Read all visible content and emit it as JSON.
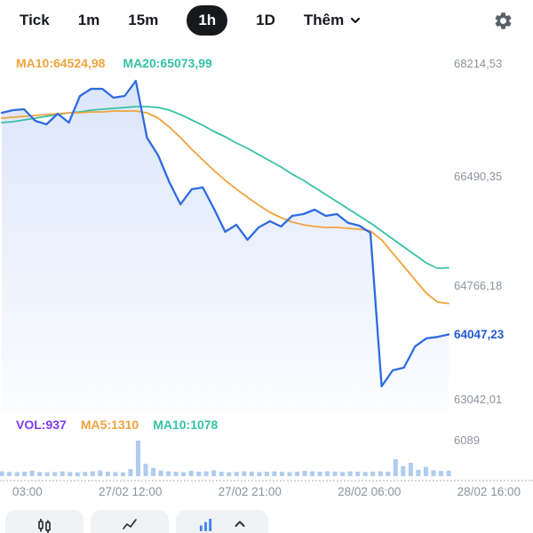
{
  "header": {
    "tabs": [
      {
        "label": "Tick"
      },
      {
        "label": "1m"
      },
      {
        "label": "15m"
      },
      {
        "label": "1h"
      },
      {
        "label": "1D"
      },
      {
        "label": "Thêm"
      }
    ],
    "active_tab": "1h"
  },
  "chart": {
    "ma_row": {
      "ma10": "MA10:64524,98",
      "ma20": "MA20:65073,99"
    },
    "y_axis": {
      "labels": [
        "68214,53",
        "66490,35",
        "64766,18",
        "63042,01"
      ],
      "current_price": "64047,23",
      "volume_axis_label": "6089"
    },
    "vol_row": {
      "vol": "VOL:937",
      "ma5": "MA5:1310",
      "ma10": "MA10:1078"
    },
    "x_axis": [
      "03:00",
      "27/02 12:00",
      "27/02 21:00",
      "28/02 06:00",
      "28/02 16:00"
    ]
  },
  "colors": {
    "price_line": "#2E6BE0",
    "price_area_top": "#2F6BE0",
    "ma10": "#F0A33F",
    "ma20": "#35C2A4",
    "vol_label": "#7C3AED",
    "volume_bar": "#AFCBEF",
    "current_price": "#2458D6",
    "axis_text": "#8D939C",
    "active_tab_bg": "#17191D"
  },
  "chart_data": {
    "type": "line",
    "title": "",
    "interval": "1h",
    "x_axis_labels": [
      "03:00",
      "27/02 12:00",
      "27/02 21:00",
      "28/02 06:00",
      "28/02 16:00"
    ],
    "y_axis_ticks": [
      68214.53,
      66490.35,
      64766.18,
      63042.01
    ],
    "current_price": 64047.23,
    "series": [
      {
        "name": "price",
        "color": "#2E6BE0",
        "values": [
          67462,
          67503,
          67517,
          67339,
          67284,
          67448,
          67312,
          67722,
          67831,
          67831,
          67695,
          67722,
          67955,
          67079,
          66805,
          66395,
          66053,
          66285,
          66313,
          65984,
          65629,
          65738,
          65506,
          65697,
          65793,
          65711,
          65875,
          65902,
          65971,
          65875,
          65902,
          65766,
          65724,
          65615,
          63249,
          63495,
          63536,
          63864,
          63987,
          64010,
          64047.23
        ]
      },
      {
        "name": "MA10",
        "color": "#F0A33F",
        "values": [
          67380,
          67394,
          67407,
          67421,
          67435,
          67448,
          67462,
          67462,
          67476,
          67476,
          67489,
          67489,
          67489,
          67462,
          67380,
          67243,
          67079,
          66901,
          66737,
          66572,
          66422,
          66285,
          66162,
          66039,
          65929,
          65847,
          65779,
          65738,
          65710,
          65697,
          65697,
          65683,
          65669,
          65642,
          65505,
          65300,
          65095,
          64889,
          64684,
          64547,
          64524.98
        ]
      },
      {
        "name": "MA20",
        "color": "#35C2A4",
        "values": [
          67311,
          67325,
          67352,
          67380,
          67407,
          67435,
          67462,
          67476,
          67503,
          67517,
          67530,
          67544,
          67558,
          67558,
          67544,
          67503,
          67435,
          67352,
          67270,
          67174,
          67092,
          66997,
          66914,
          66819,
          66723,
          66627,
          66517,
          66422,
          66312,
          66203,
          66093,
          65984,
          65874,
          65765,
          65642,
          65519,
          65395,
          65272,
          65149,
          65067,
          65073.99
        ]
      }
    ],
    "volume": {
      "name": "volume",
      "color": "#AFCBEF",
      "current": 937,
      "ma5": 1310,
      "ma10": 1078,
      "scale_max": 6089,
      "values": [
        820,
        730,
        680,
        760,
        940,
        720,
        660,
        700,
        800,
        680,
        640,
        720,
        820,
        980,
        740,
        700,
        660,
        1200,
        6089,
        2100,
        1400,
        960,
        820,
        740,
        680,
        900,
        760,
        820,
        1000,
        760,
        660,
        720,
        840,
        780,
        700,
        760,
        820,
        740,
        680,
        760,
        900,
        820,
        760,
        840,
        780,
        720,
        800,
        760,
        720,
        780,
        840,
        760,
        2900,
        1700,
        2300,
        1100,
        1600,
        1000,
        900,
        937
      ]
    },
    "layout": {
      "x_start": 2,
      "x_end": 505,
      "y_top": 72,
      "y_bottom": 450,
      "price_top": 68214.53,
      "price_bottom": 63042.01,
      "area_bottom": 462,
      "vol_base": 536,
      "vol_max_height": 40,
      "vol_bar_width": 5
    }
  }
}
